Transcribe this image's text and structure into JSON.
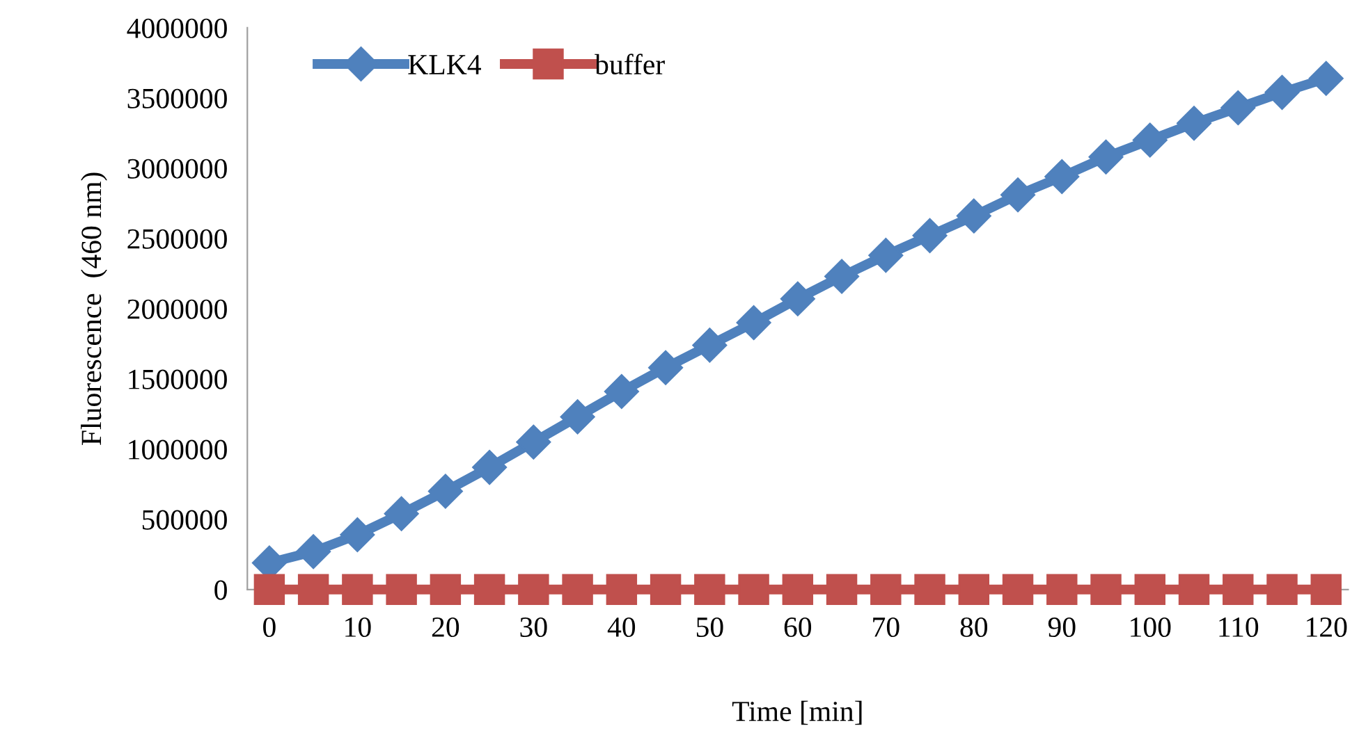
{
  "chart_data": {
    "type": "line",
    "xlabel": "Time [min]",
    "ylabel": "Fluorescence  (460 nm)",
    "x": [
      0,
      5,
      10,
      15,
      20,
      25,
      30,
      35,
      40,
      45,
      50,
      55,
      60,
      65,
      70,
      75,
      80,
      85,
      90,
      95,
      100,
      105,
      110,
      115,
      120
    ],
    "series": [
      {
        "name": "KLK4",
        "color": "#4f81bd",
        "marker": "diamond",
        "values": [
          190000,
          270000,
          390000,
          540000,
          700000,
          870000,
          1050000,
          1230000,
          1410000,
          1580000,
          1740000,
          1900000,
          2070000,
          2230000,
          2380000,
          2520000,
          2660000,
          2810000,
          2940000,
          3080000,
          3200000,
          3320000,
          3430000,
          3540000,
          3640000
        ]
      },
      {
        "name": "buffer",
        "color": "#c0504d",
        "marker": "square",
        "values": [
          0,
          0,
          0,
          0,
          0,
          0,
          0,
          0,
          0,
          0,
          0,
          0,
          0,
          0,
          0,
          0,
          0,
          0,
          0,
          0,
          0,
          0,
          0,
          0,
          0
        ]
      }
    ],
    "xlim": [
      -2.5,
      122.5
    ],
    "xticks": [
      0,
      10,
      20,
      30,
      40,
      50,
      60,
      70,
      80,
      90,
      100,
      110,
      120
    ],
    "ylim": [
      0,
      4000000
    ],
    "yticks": [
      0,
      500000,
      1000000,
      1500000,
      2000000,
      2500000,
      3000000,
      3500000,
      4000000
    ],
    "grid": false,
    "legend": "top left",
    "line_style": "solid"
  }
}
